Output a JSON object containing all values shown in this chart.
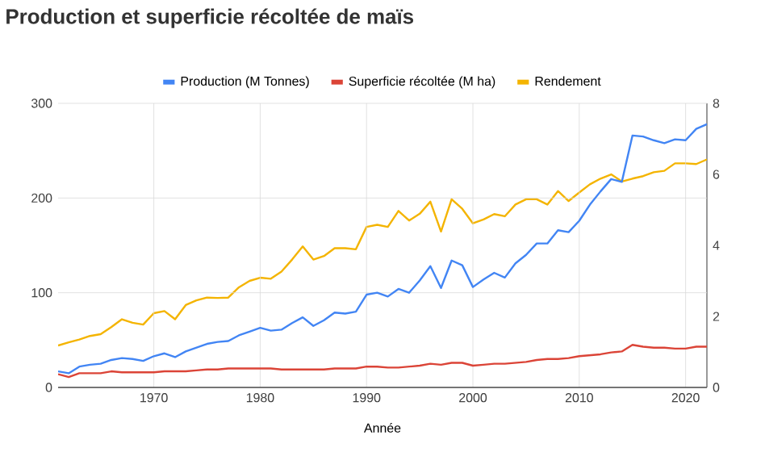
{
  "chart_data": {
    "type": "line",
    "title": "Production et superficie récoltée de maïs",
    "xlabel": "Année",
    "x": [
      1961,
      1962,
      1963,
      1964,
      1965,
      1966,
      1967,
      1968,
      1969,
      1970,
      1971,
      1972,
      1973,
      1974,
      1975,
      1976,
      1977,
      1978,
      1979,
      1980,
      1981,
      1982,
      1983,
      1984,
      1985,
      1986,
      1987,
      1988,
      1989,
      1990,
      1991,
      1992,
      1993,
      1994,
      1995,
      1996,
      1997,
      1998,
      1999,
      2000,
      2001,
      2002,
      2003,
      2004,
      2005,
      2006,
      2007,
      2008,
      2009,
      2010,
      2011,
      2012,
      2013,
      2014,
      2015,
      2016,
      2017,
      2018,
      2019,
      2020,
      2021,
      2022
    ],
    "series": [
      {
        "name": "Production (M Tonnes)",
        "color": "#4285f4",
        "values": [
          17,
          15,
          22,
          24,
          25,
          29,
          31,
          30,
          28,
          33,
          36,
          32,
          38,
          42,
          46,
          48,
          49,
          55,
          59,
          63,
          60,
          61,
          68,
          74,
          65,
          71,
          79,
          78,
          80,
          98,
          100,
          96,
          104,
          100,
          113,
          128,
          105,
          134,
          129,
          106,
          114,
          121,
          116,
          131,
          140,
          152,
          152,
          166,
          164,
          176,
          193,
          207,
          220,
          217,
          266,
          265,
          261,
          258,
          262,
          261,
          273,
          278
        ]
      },
      {
        "name": "Superficie récoltée (M ha)",
        "color": "#db4437",
        "values": [
          14,
          11,
          15,
          15,
          15,
          17,
          16,
          16,
          16,
          16,
          17,
          17,
          17,
          18,
          19,
          19,
          20,
          20,
          20,
          20,
          20,
          19,
          19,
          19,
          19,
          19,
          20,
          20,
          20,
          22,
          22,
          21,
          21,
          22,
          23,
          25,
          24,
          26,
          26,
          23,
          24,
          25,
          25,
          26,
          27,
          29,
          30,
          30,
          31,
          33,
          34,
          35,
          37,
          38,
          45,
          43,
          42,
          42,
          41,
          41,
          43,
          43
        ]
      },
      {
        "name": "Rendement",
        "color": "#f4b400",
        "axis": "y2",
        "values": [
          1.18,
          1.27,
          1.35,
          1.45,
          1.5,
          1.7,
          1.92,
          1.82,
          1.77,
          2.09,
          2.15,
          1.92,
          2.32,
          2.45,
          2.53,
          2.52,
          2.53,
          2.82,
          3.0,
          3.09,
          3.06,
          3.26,
          3.6,
          3.97,
          3.6,
          3.7,
          3.92,
          3.92,
          3.89,
          4.52,
          4.58,
          4.52,
          4.97,
          4.7,
          4.89,
          5.23,
          4.39,
          5.3,
          5.03,
          4.62,
          4.73,
          4.88,
          4.82,
          5.15,
          5.3,
          5.3,
          5.15,
          5.53,
          5.25,
          5.49,
          5.72,
          5.88,
          6.0,
          5.8,
          5.88,
          5.95,
          6.06,
          6.1,
          6.31,
          6.31,
          6.29,
          6.42
        ]
      }
    ],
    "xlim": [
      1961,
      2022
    ],
    "xticks": [
      1970,
      1980,
      1990,
      2000,
      2010,
      2020
    ],
    "ylim": [
      0,
      300
    ],
    "yticks": [
      0,
      100,
      200,
      300
    ],
    "y2lim": [
      0,
      8
    ],
    "y2ticks": [
      0,
      2,
      4,
      6,
      8
    ],
    "grid": true,
    "legend": "top",
    "marker": "none",
    "line_style": "solid"
  }
}
